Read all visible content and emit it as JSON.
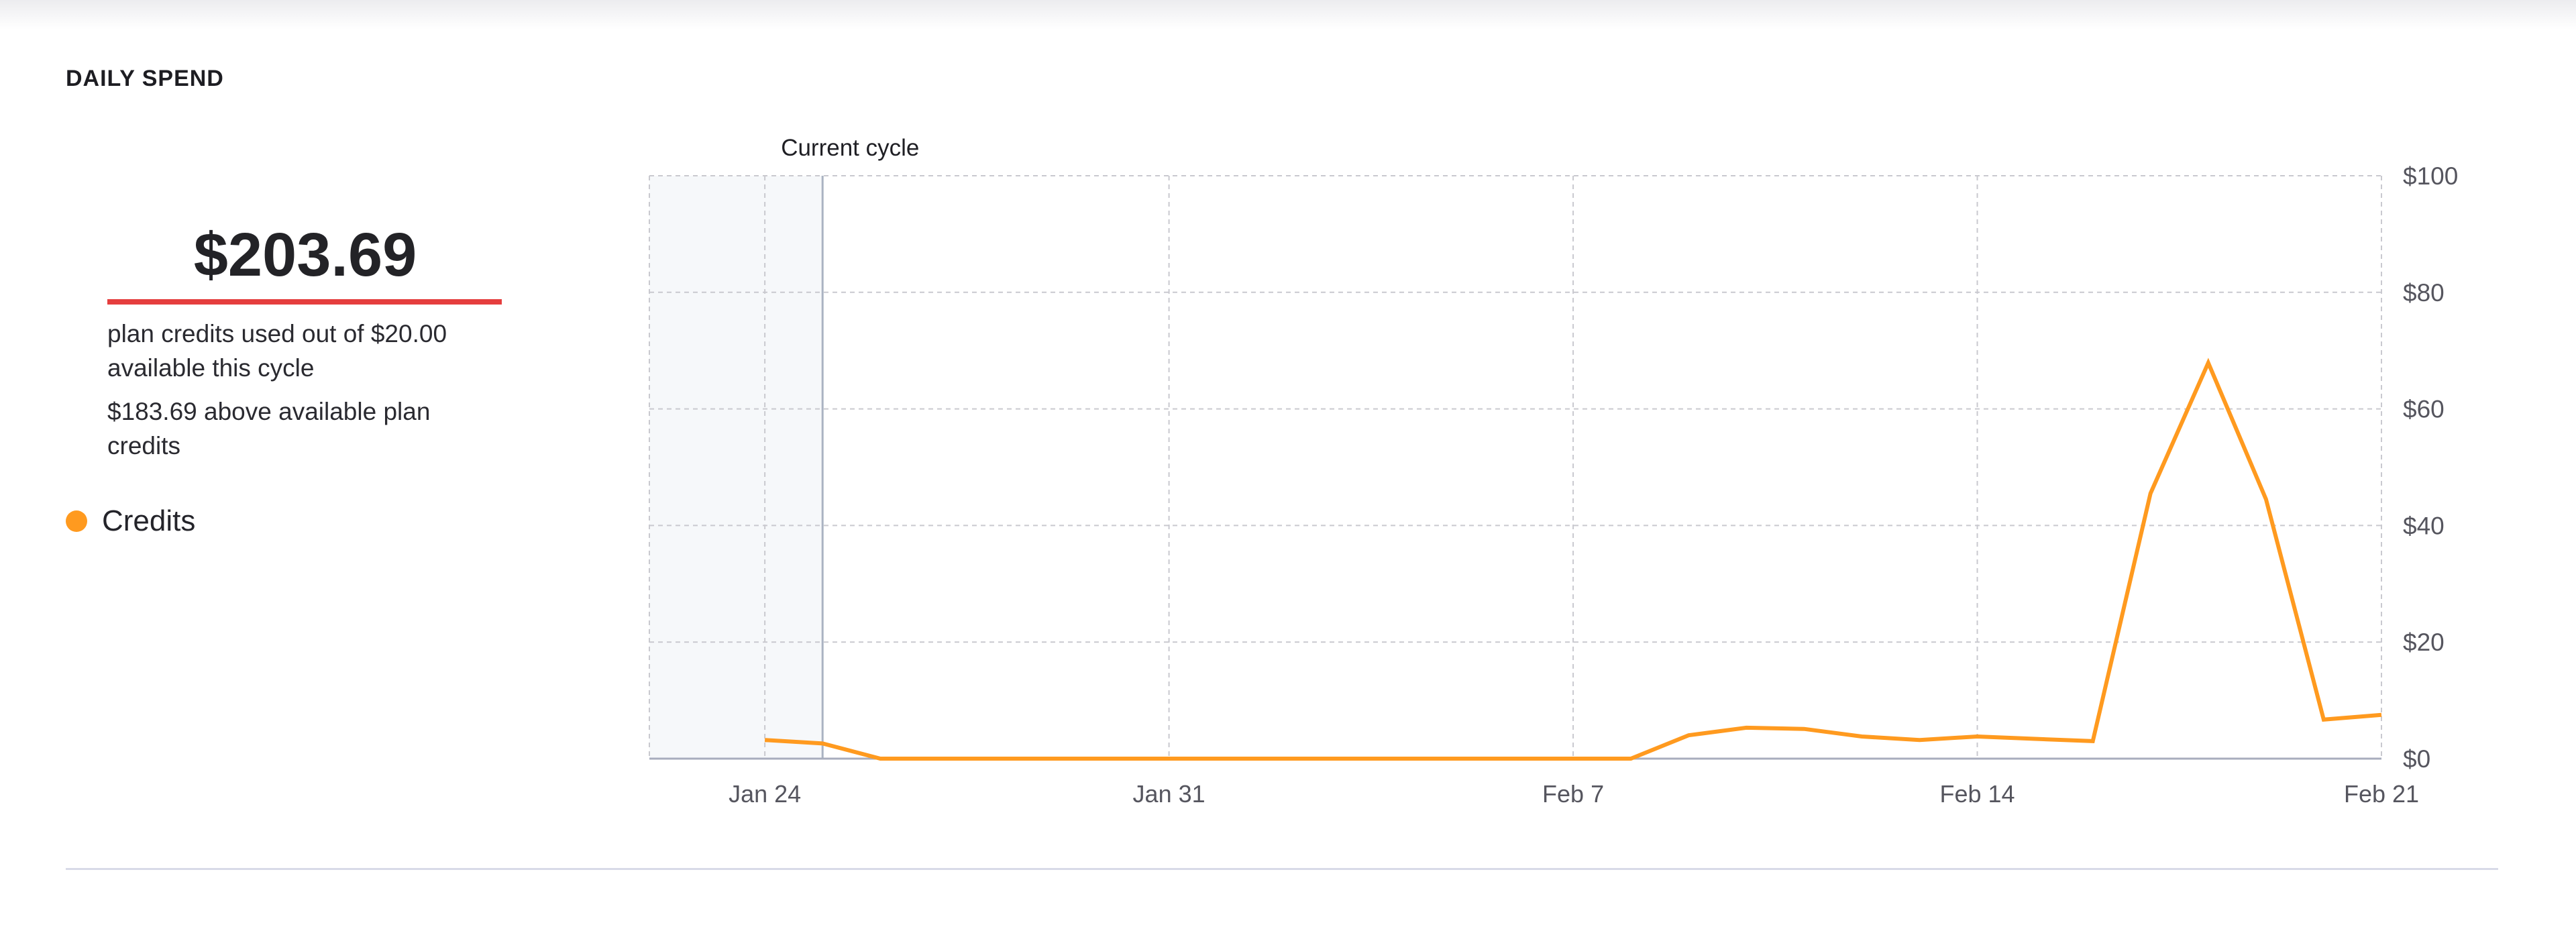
{
  "section_title": "DAILY SPEND",
  "summary": {
    "amount": "$203.69",
    "line1": "plan credits used out of $20.00 available this cycle",
    "line2": "$183.69 above available plan credits"
  },
  "colors": {
    "series": "#ff9a1f",
    "underline": "#e53e3e",
    "previous_cycle_shade": "#f6f8fa"
  },
  "legend": {
    "icon": "filled-circle",
    "label": "Credits"
  },
  "chart_data": {
    "type": "line",
    "title": "",
    "xlabel": "",
    "ylabel": "",
    "x_ticks": [
      "Jan 24",
      "Jan 31",
      "Feb 7",
      "Feb 14",
      "Feb 21"
    ],
    "y_ticks": [
      "$0",
      "$20",
      "$40",
      "$60",
      "$80",
      "$100"
    ],
    "ylim": [
      0,
      100
    ],
    "xlim": [
      "Jan 22",
      "Feb 21"
    ],
    "y_axis_position": "right",
    "grid": true,
    "annotation": {
      "label": "Current cycle",
      "date": "Jan 25",
      "shade_before": true
    },
    "series": [
      {
        "name": "Credits",
        "x": [
          "Jan 24",
          "Jan 25",
          "Jan 26",
          "Jan 27",
          "Jan 28",
          "Jan 29",
          "Jan 30",
          "Jan 31",
          "Feb 1",
          "Feb 2",
          "Feb 3",
          "Feb 4",
          "Feb 5",
          "Feb 6",
          "Feb 7",
          "Feb 8",
          "Feb 9",
          "Feb 10",
          "Feb 11",
          "Feb 12",
          "Feb 13",
          "Feb 14",
          "Feb 15",
          "Feb 16",
          "Feb 17",
          "Feb 18",
          "Feb 19",
          "Feb 20",
          "Feb 21"
        ],
        "values": [
          3.2,
          2.6,
          0,
          0,
          0,
          0,
          0,
          0,
          0,
          0,
          0,
          0,
          0,
          0,
          0,
          0,
          4.0,
          5.3,
          5.1,
          3.8,
          3.2,
          3.8,
          3.4,
          3.0,
          45.5,
          67.9,
          44.5,
          6.7,
          7.5
        ]
      }
    ]
  }
}
